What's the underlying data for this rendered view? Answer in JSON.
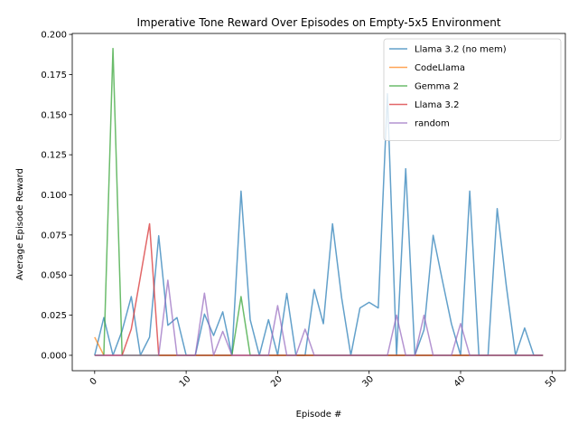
{
  "chart_data": {
    "type": "line",
    "title": "Imperative Tone Reward Over Episodes on Empty-5x5 Environment",
    "xlabel": "Episode #",
    "ylabel": "Average Episode Reward",
    "xlim": [
      -2.45,
      51.45
    ],
    "ylim": [
      -0.0096,
      0.2006
    ],
    "xticks": [
      0,
      10,
      20,
      30,
      40,
      50
    ],
    "yticks": [
      0.0,
      0.025,
      0.05,
      0.075,
      0.1,
      0.125,
      0.15,
      0.175,
      0.2
    ],
    "ytick_labels": [
      "0.000",
      "0.025",
      "0.050",
      "0.075",
      "0.100",
      "0.125",
      "0.150",
      "0.175",
      "0.200"
    ],
    "xtick_rotation": 45,
    "grid": false,
    "legend_position": "top-right",
    "x": [
      0,
      1,
      2,
      3,
      4,
      5,
      6,
      7,
      8,
      9,
      10,
      11,
      12,
      13,
      14,
      15,
      16,
      17,
      18,
      19,
      20,
      21,
      22,
      23,
      24,
      25,
      26,
      27,
      28,
      29,
      30,
      31,
      32,
      33,
      34,
      35,
      36,
      37,
      38,
      39,
      40,
      41,
      42,
      43,
      44,
      45,
      46,
      47,
      48,
      49
    ],
    "series": [
      {
        "name": "Llama 3.2 (no mem)",
        "color": "#1f77b4",
        "values": [
          0,
          0.0235,
          0,
          0.0153,
          0.0366,
          0,
          0.0113,
          0.0745,
          0.0187,
          0.0235,
          0,
          0,
          0.0257,
          0.0123,
          0.0271,
          0,
          0.1023,
          0.0222,
          0,
          0.0222,
          0,
          0.0386,
          0,
          0,
          0.041,
          0.0197,
          0.082,
          0.0357,
          0,
          0.0295,
          0.033,
          0.0295,
          0.163,
          0,
          0.1163,
          0,
          0.0159,
          0.0748,
          0.0469,
          0.0196,
          0,
          0.1023,
          0,
          0,
          0.0914,
          0.0431,
          0,
          0.017,
          0,
          0
        ]
      },
      {
        "name": "CodeLlama",
        "color": "#ff7f0e",
        "values": [
          0.0113,
          0,
          0,
          0,
          0,
          0,
          0,
          0,
          0,
          0,
          0,
          0,
          0,
          0,
          0,
          0,
          0,
          0,
          0,
          0,
          0,
          0,
          0,
          0,
          0,
          0,
          0,
          0,
          0,
          0,
          0,
          0,
          0,
          0,
          0,
          0,
          0,
          0,
          0,
          0,
          0,
          0,
          0,
          0,
          0,
          0,
          0,
          0,
          0,
          0
        ]
      },
      {
        "name": "Gemma 2",
        "color": "#2ca02c",
        "values": [
          0,
          0,
          0.1912,
          0,
          0,
          0,
          0,
          0,
          0,
          0,
          0,
          0,
          0,
          0,
          0,
          0,
          0.0366,
          0,
          0,
          0,
          0,
          0,
          0,
          0,
          0,
          0,
          0,
          0,
          0,
          0,
          0,
          0,
          0,
          0,
          0,
          0,
          0,
          0,
          0,
          0,
          0,
          0,
          0,
          0,
          0,
          0,
          0,
          0,
          0,
          0
        ]
      },
      {
        "name": "Llama 3.2",
        "color": "#d62728",
        "values": [
          0,
          0,
          0,
          0,
          0.0163,
          0.049,
          0.082,
          0,
          0,
          0,
          0,
          0,
          0,
          0,
          0,
          0,
          0,
          0,
          0,
          0,
          0,
          0,
          0,
          0,
          0,
          0,
          0,
          0,
          0,
          0,
          0,
          0,
          0,
          0,
          0,
          0,
          0,
          0,
          0,
          0,
          0,
          0,
          0,
          0,
          0,
          0,
          0,
          0,
          0,
          0
        ]
      },
      {
        "name": "random",
        "color": "#9467bd",
        "values": [
          0,
          0,
          0,
          0,
          0,
          0,
          0,
          0,
          0.0468,
          0,
          0,
          0,
          0.0387,
          0,
          0.0149,
          0,
          0,
          0,
          0,
          0,
          0.031,
          0,
          0,
          0.0163,
          0,
          0,
          0,
          0,
          0,
          0,
          0,
          0,
          0,
          0.025,
          0,
          0,
          0.025,
          0,
          0,
          0,
          0.0198,
          0,
          0,
          0,
          0,
          0,
          0,
          0,
          0,
          0
        ]
      }
    ]
  }
}
